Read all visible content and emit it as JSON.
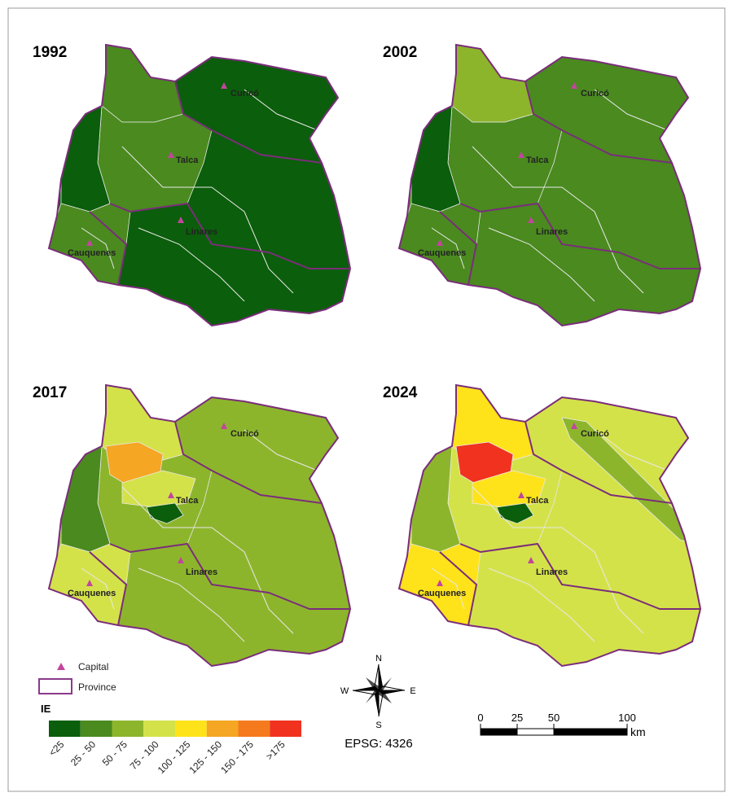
{
  "maps": [
    {
      "year": "1992",
      "capitals": [
        "Curicó",
        "Talca",
        "Linares",
        "Cauquenes"
      ]
    },
    {
      "year": "2002",
      "capitals": [
        "Curicó",
        "Talca",
        "Linares",
        "Cauquenes"
      ]
    },
    {
      "year": "2017",
      "capitals": [
        "Curicó",
        "Talca",
        "Linares",
        "Cauquenes"
      ]
    },
    {
      "year": "2024",
      "capitals": [
        "Curicó",
        "Talca",
        "Linares",
        "Cauquenes"
      ]
    }
  ],
  "legend": {
    "capital": "Capital",
    "province": "Province",
    "title": "IE",
    "classes": [
      {
        "label": "<25",
        "color": "#0b5e0b"
      },
      {
        "label": "25 - 50",
        "color": "#4a8a1f"
      },
      {
        "label": "50 - 75",
        "color": "#8db52c"
      },
      {
        "label": "75 - 100",
        "color": "#d4e24a"
      },
      {
        "label": "100 - 125",
        "color": "#ffe31a"
      },
      {
        "label": "125 - 150",
        "color": "#f5a623"
      },
      {
        "label": "150 - 175",
        "color": "#f57a1e"
      },
      {
        "label": ">175",
        "color": "#f0321e"
      }
    ]
  },
  "compass": {
    "n": "N",
    "s": "S",
    "e": "E",
    "w": "W"
  },
  "crs": "EPSG: 4326",
  "scale": {
    "ticks": [
      0,
      25,
      50,
      100
    ],
    "unit": "km"
  }
}
